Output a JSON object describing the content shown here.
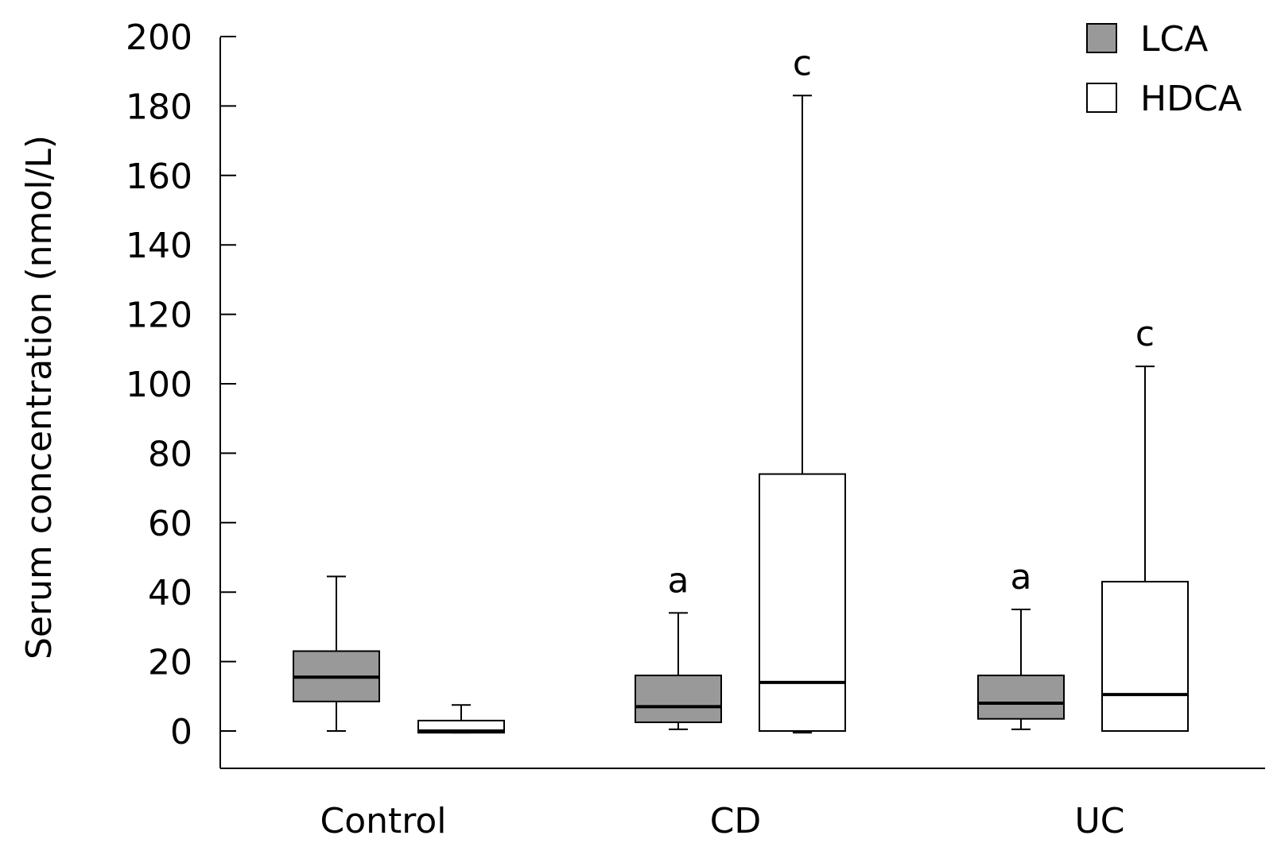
{
  "chart_data": {
    "type": "box",
    "xlabel": "",
    "ylabel": "Serum concentration (nmol/L)",
    "ylim": [
      -10,
      200
    ],
    "yticks": [
      0,
      20,
      40,
      60,
      80,
      100,
      120,
      140,
      160,
      180,
      200
    ],
    "yticklabels": [
      "0",
      "20",
      "40",
      "60",
      "80",
      "100",
      "120",
      "140",
      "160",
      "180",
      "200"
    ],
    "categories": [
      "Control",
      "CD",
      "UC"
    ],
    "legend_position": "top-right",
    "series": [
      {
        "name": "LCA",
        "color": "#999999",
        "boxes": [
          {
            "min": 0,
            "q1": 8.5,
            "median": 15.5,
            "q3": 23,
            "max": 44.5,
            "annotation": ""
          },
          {
            "min": 0.5,
            "q1": 2.5,
            "median": 7,
            "q3": 16,
            "max": 34,
            "annotation": "a"
          },
          {
            "min": 0.5,
            "q1": 3.5,
            "median": 8,
            "q3": 16,
            "max": 35,
            "annotation": "a"
          }
        ]
      },
      {
        "name": "HDCA",
        "color": "#ffffff",
        "boxes": [
          {
            "min": -0.5,
            "q1": -0.5,
            "median": 0,
            "q3": 3,
            "max": 7.5,
            "annotation": ""
          },
          {
            "min": -0.5,
            "q1": 0,
            "median": 14,
            "q3": 74,
            "max": 183,
            "annotation": "c"
          },
          {
            "min": 0,
            "q1": 0,
            "median": 10.5,
            "q3": 43,
            "max": 105,
            "annotation": "c"
          }
        ]
      }
    ]
  }
}
